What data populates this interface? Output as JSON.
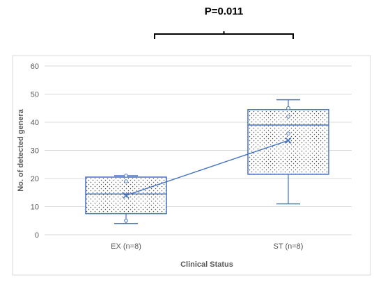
{
  "chart_data": {
    "type": "box",
    "title": "",
    "xlabel": "Clinical Status",
    "ylabel": "No. of detected genera",
    "ylim": [
      0,
      60
    ],
    "yticks": [
      0,
      10,
      20,
      30,
      40,
      50,
      60
    ],
    "grid": true,
    "categories": [
      "EX (n=8)",
      "ST (n=8)"
    ],
    "boxes": [
      {
        "category": "EX (n=8)",
        "whisker_low": 4,
        "q1": 7.5,
        "median": 14.5,
        "q3": 20.5,
        "whisker_high": 21,
        "mean": 14,
        "outliers": [
          5,
          19,
          21
        ]
      },
      {
        "category": "ST (n=8)",
        "whisker_low": 11,
        "q1": 21.5,
        "median": 39,
        "q3": 44.5,
        "whisker_high": 48,
        "mean": 33.5,
        "outliers": [
          36,
          42,
          45
        ]
      }
    ],
    "mean_line": true,
    "annotation": {
      "text": "P=0.011",
      "between": [
        "EX (n=8)",
        "ST (n=8)"
      ]
    },
    "colors": {
      "series": "#4472c4",
      "grid": "#d9d9d9",
      "text": "#595959",
      "frame": "#d9d9d9",
      "bracket": "#000000"
    }
  }
}
